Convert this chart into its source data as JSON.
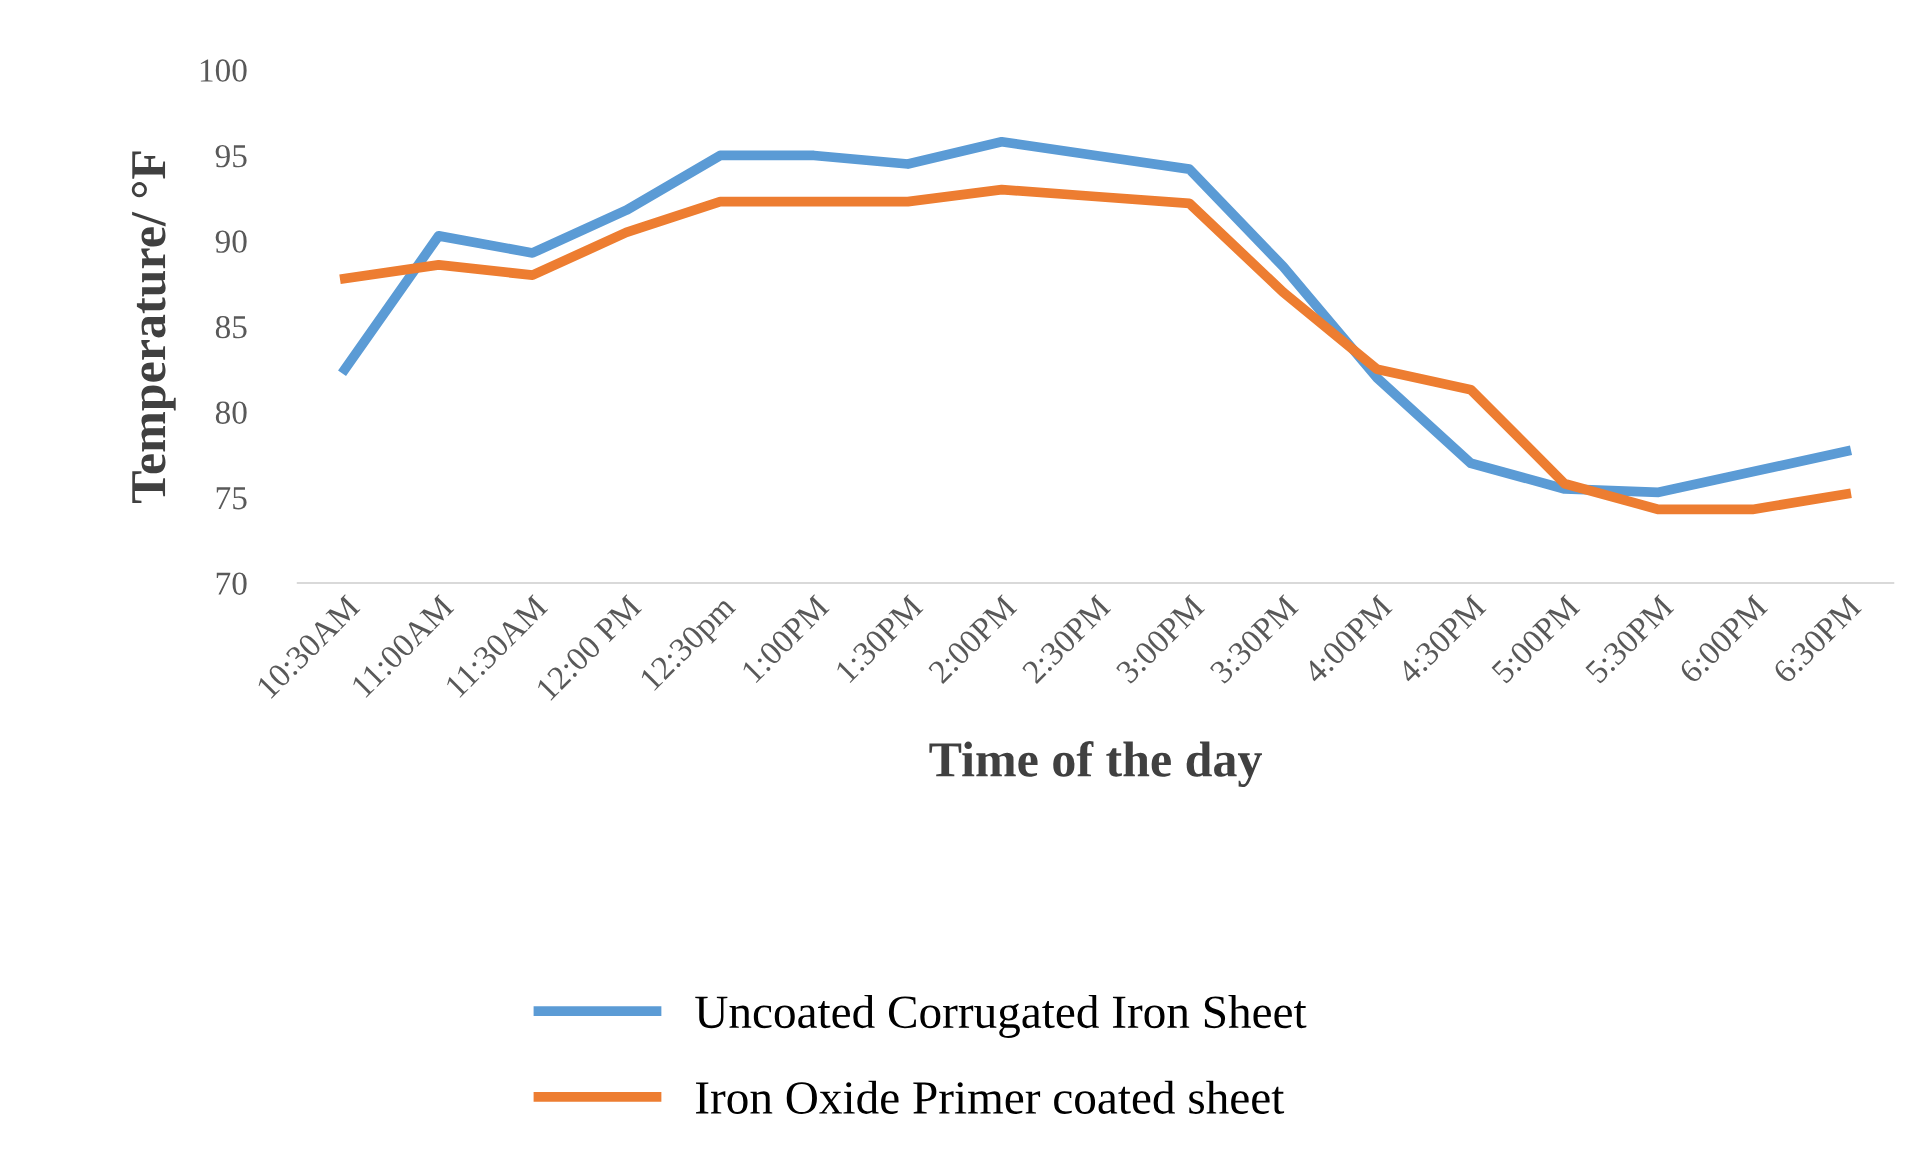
{
  "chart_data": {
    "type": "line",
    "xlabel": "Time of the day",
    "ylabel": "Temperature/ °F",
    "categories": [
      "10:30AM",
      "11:00AM",
      "11:30AM",
      "12:00 PM",
      "12:30pm",
      "1:00PM",
      "1:30PM",
      "2:00PM",
      "2:30PM",
      "3:00PM",
      "3:30PM",
      "4:00PM",
      "4:30PM",
      "5:00PM",
      "5:30PM",
      "6:00PM",
      "6:30PM"
    ],
    "series": [
      {
        "name": "Uncoated Corrugated Iron Sheet",
        "color": "#5b9bd5",
        "values": [
          82.5,
          90.3,
          89.3,
          91.8,
          95,
          95,
          94.5,
          95.8,
          95,
          94.2,
          88.5,
          82,
          77,
          75.5,
          75.3,
          76.5,
          77.7
        ]
      },
      {
        "name": "Iron Oxide Primer coated sheet",
        "color": "#ed7d31",
        "values": [
          87.8,
          88.6,
          88,
          90.5,
          92.3,
          92.3,
          92.3,
          93,
          92.6,
          92.2,
          87,
          82.5,
          81.3,
          75.8,
          74.3,
          74.3,
          75.2
        ]
      }
    ],
    "ylim": [
      70,
      100
    ],
    "yticks": [
      70,
      75,
      80,
      85,
      90,
      95,
      100
    ],
    "grid": false,
    "legend": "bottom",
    "marker": "none",
    "line_style": "solid"
  }
}
